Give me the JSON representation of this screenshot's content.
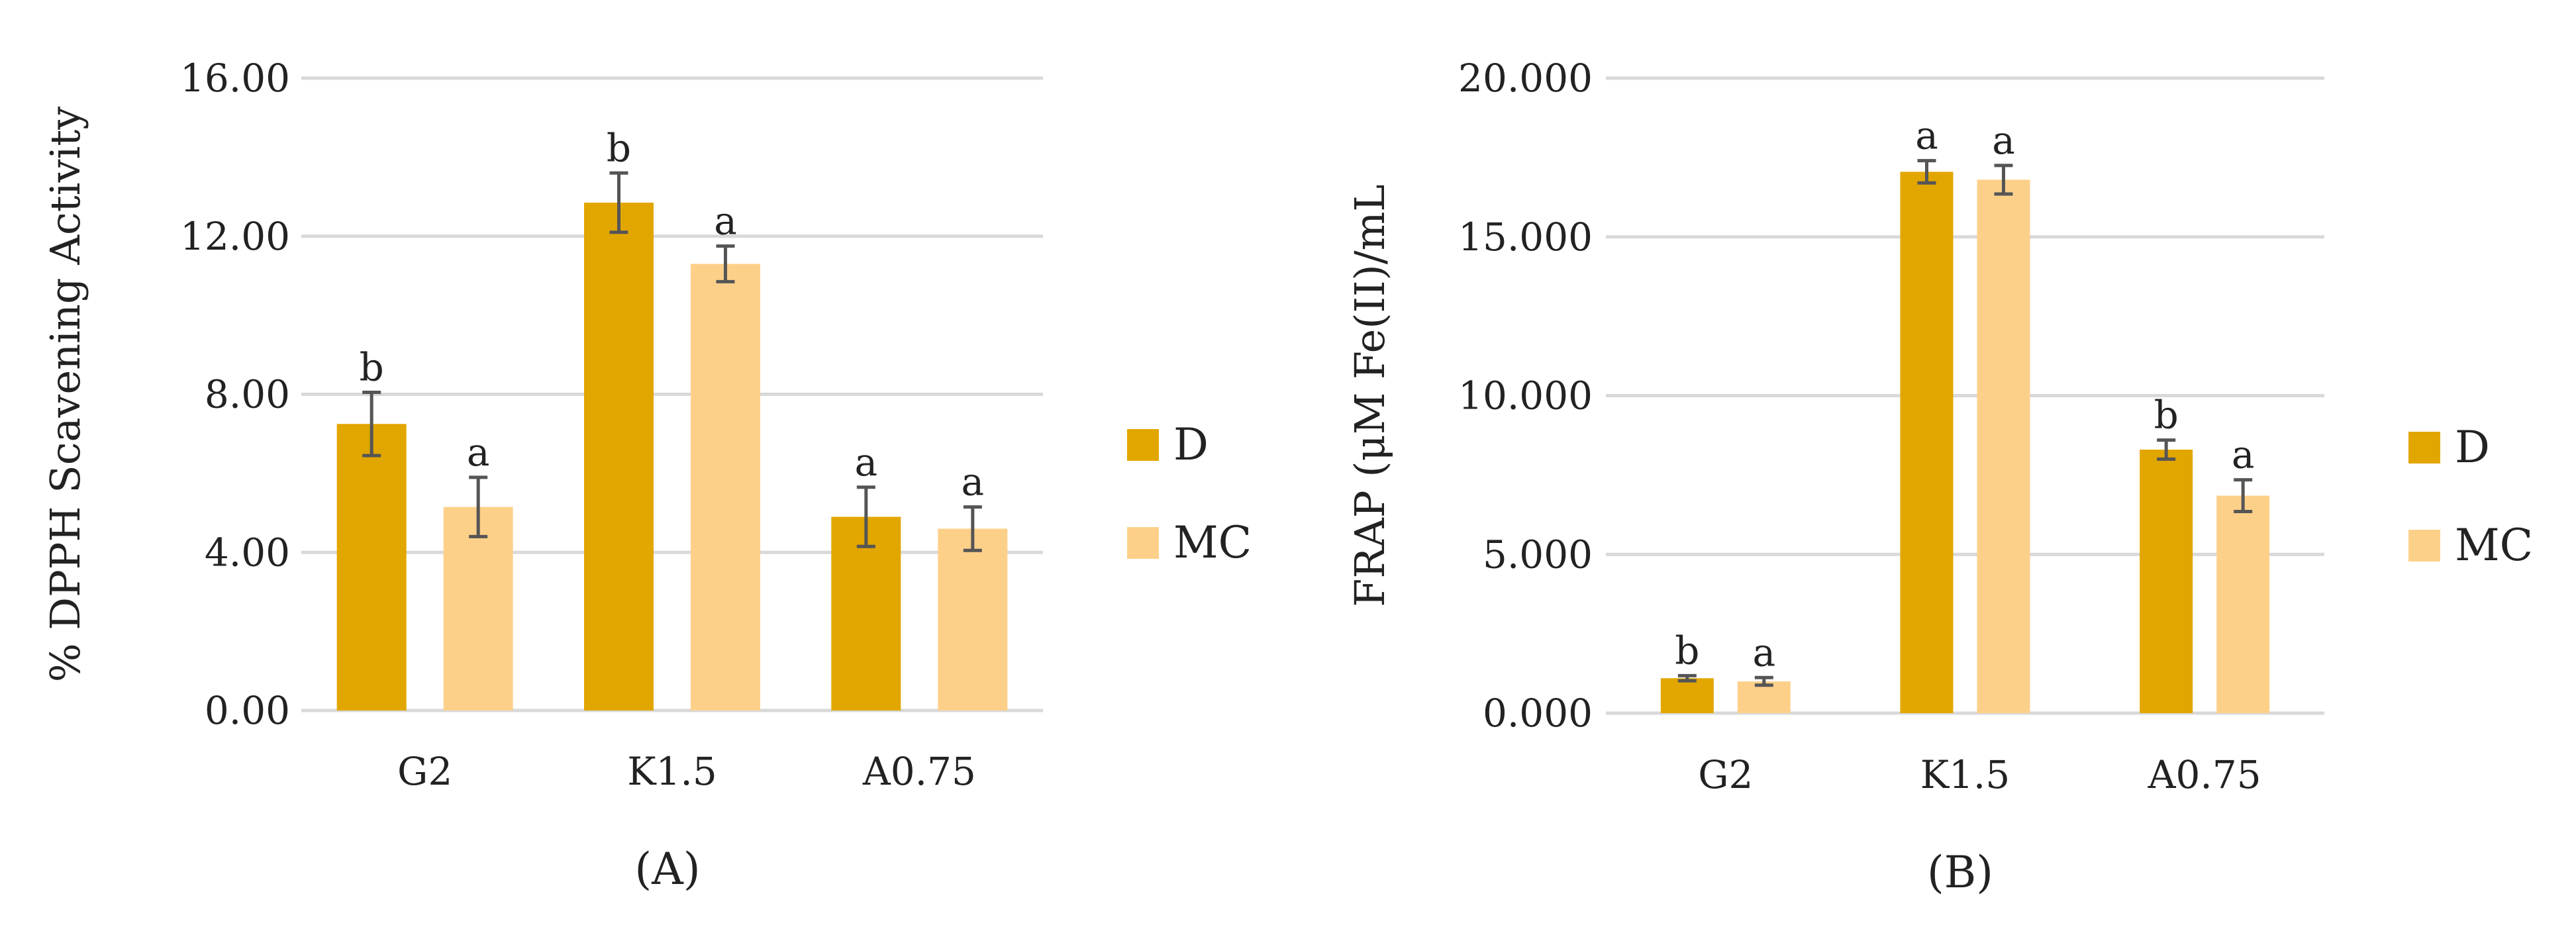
{
  "colors": {
    "D": "#e2a600",
    "MC": "#fdd08a",
    "grid": "#d9d9d9",
    "error": "#555555"
  },
  "chart_data": [
    {
      "type": "bar",
      "caption": "(A)",
      "ylabel": "% DPPH Scavening Activity",
      "ylim": [
        0,
        16
      ],
      "yticks": [
        "0.00",
        "4.00",
        "8.00",
        "12.00",
        "16.00"
      ],
      "ytick_values": [
        0,
        4,
        8,
        12,
        16
      ],
      "categories": [
        "G2",
        "K1.5",
        "A0.75"
      ],
      "grid": true,
      "legend_position": "right",
      "series": [
        {
          "name": "D",
          "values": [
            7.25,
            12.85,
            4.9
          ],
          "errors": [
            0.8,
            0.75,
            0.75
          ],
          "sig": [
            "b",
            "b",
            "a"
          ]
        },
        {
          "name": "MC",
          "values": [
            5.15,
            11.3,
            4.6
          ],
          "errors": [
            0.75,
            0.45,
            0.55
          ],
          "sig": [
            "a",
            "a",
            "a"
          ]
        }
      ]
    },
    {
      "type": "bar",
      "caption": "(B)",
      "ylabel": "FRAP (μM Fe(II)/mL",
      "ylim": [
        0,
        20
      ],
      "yticks": [
        "0.000",
        "5.000",
        "10.000",
        "15.000",
        "20.000"
      ],
      "ytick_values": [
        0,
        5,
        10,
        15,
        20
      ],
      "categories": [
        "G2",
        "K1.5",
        "A0.75"
      ],
      "grid": true,
      "legend_position": "right",
      "series": [
        {
          "name": "D",
          "values": [
            1.1,
            17.05,
            8.3
          ],
          "errors": [
            0.08,
            0.35,
            0.3
          ],
          "sig": [
            "b",
            "a",
            "b"
          ]
        },
        {
          "name": "MC",
          "values": [
            1.0,
            16.8,
            6.85
          ],
          "errors": [
            0.12,
            0.45,
            0.5
          ],
          "sig": [
            "a",
            "a",
            "a"
          ]
        }
      ]
    }
  ]
}
